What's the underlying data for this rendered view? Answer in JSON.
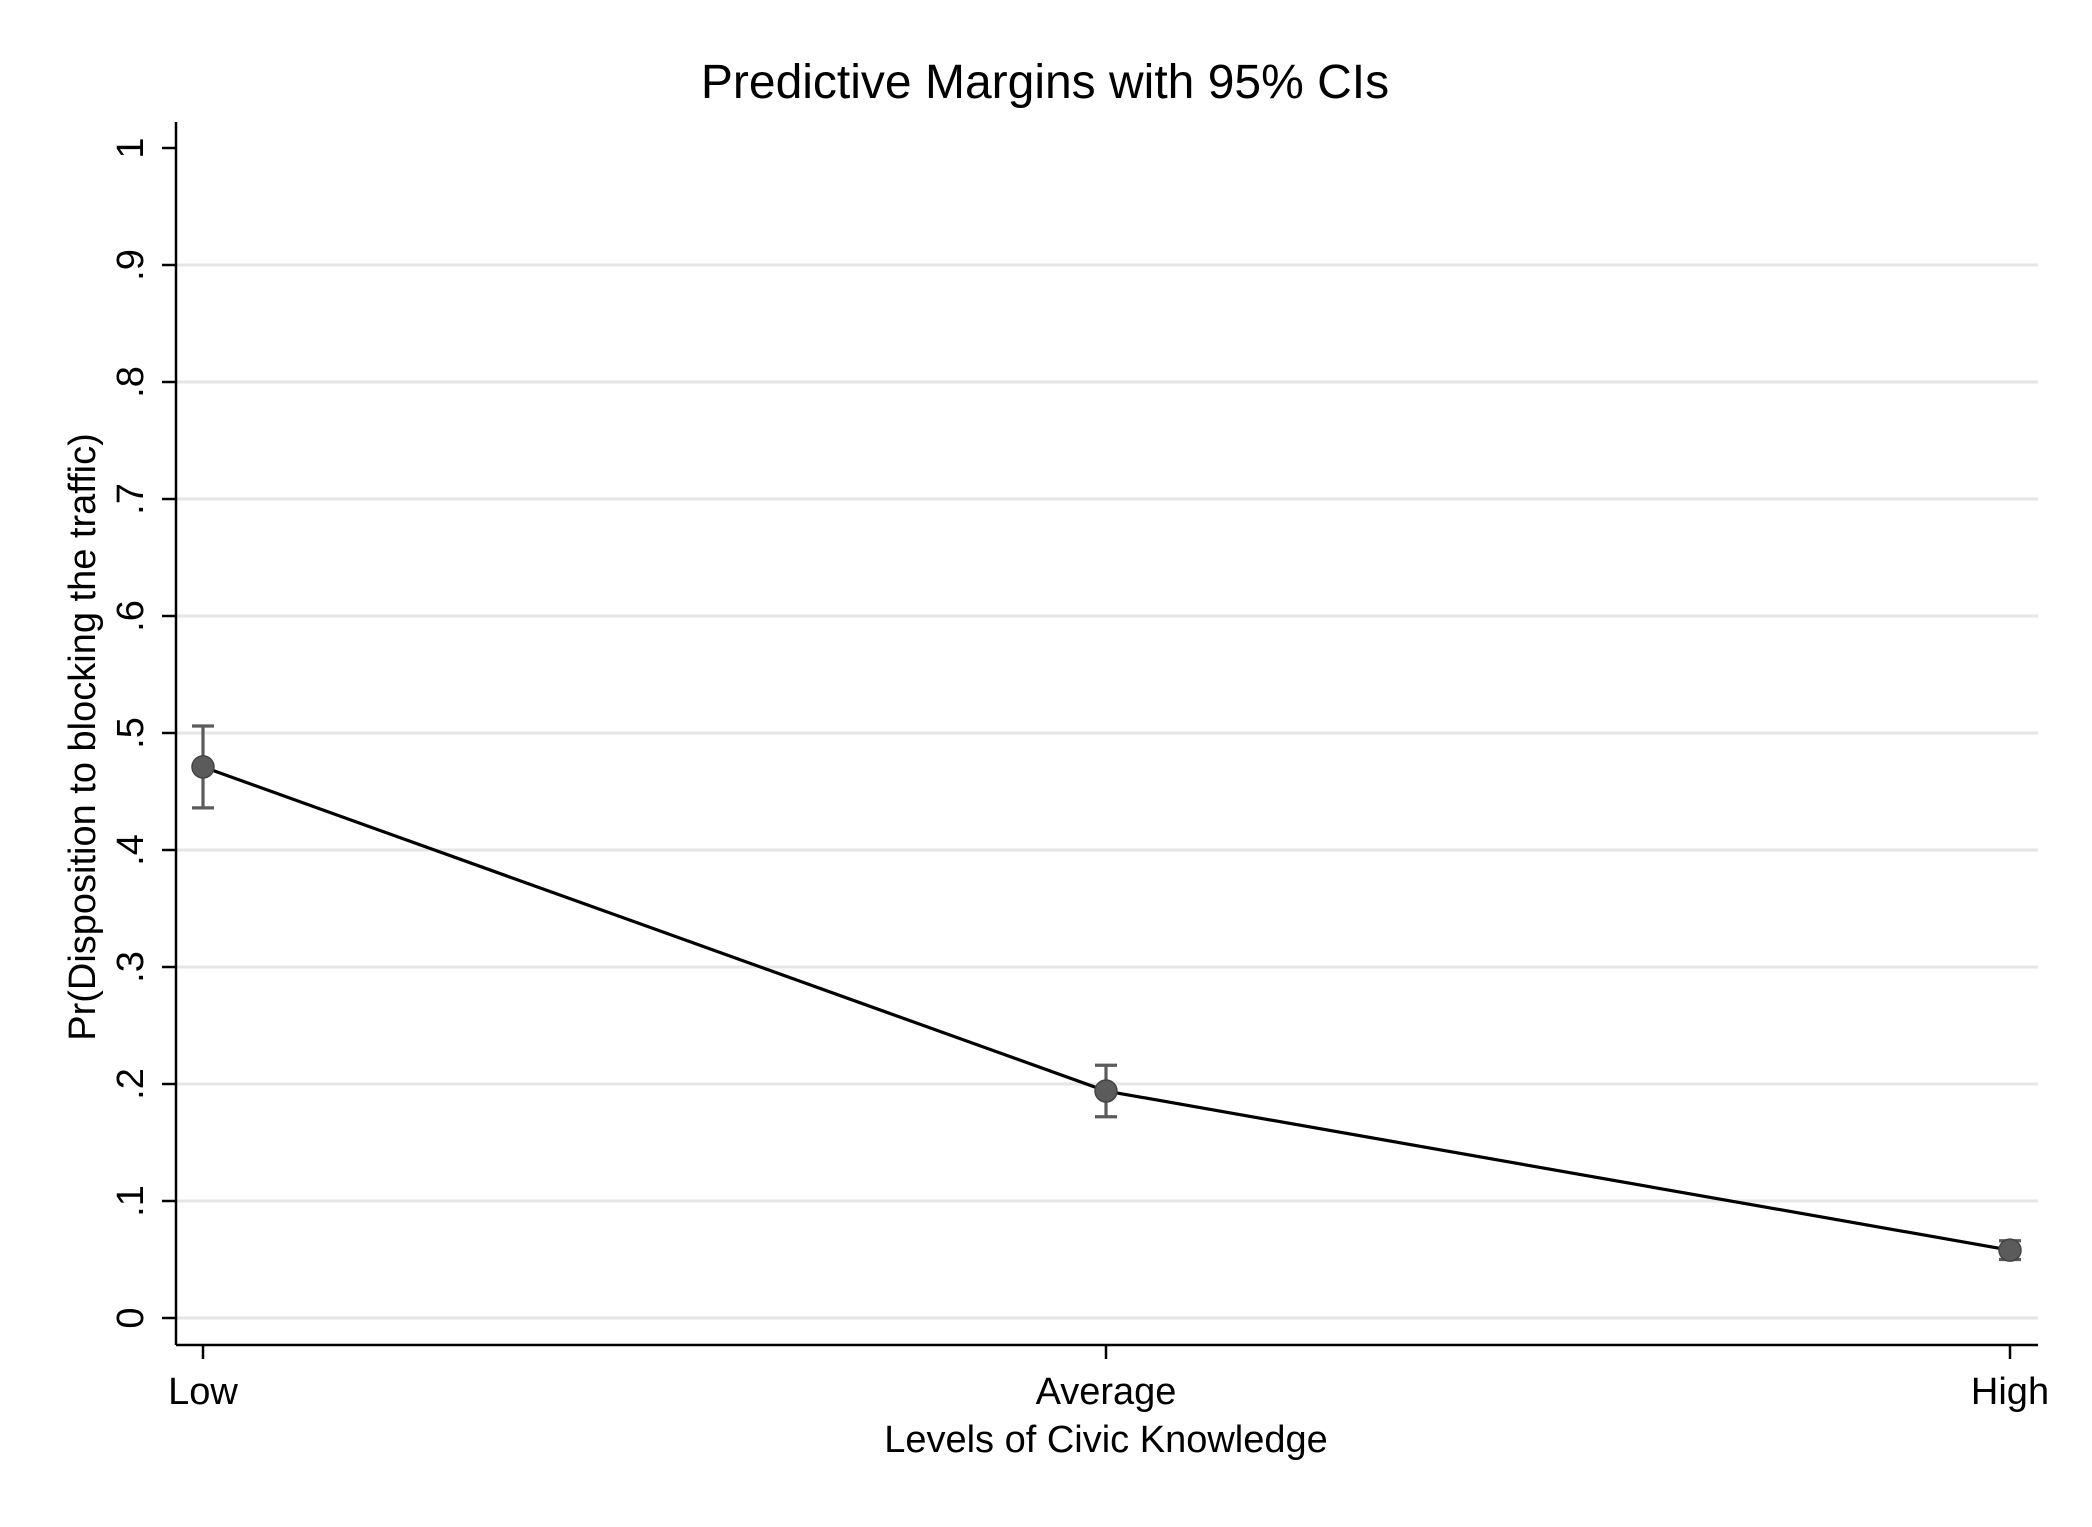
{
  "chart_data": {
    "type": "line",
    "title": "Predictive Margins with 95% CIs",
    "xlabel": "Levels of Civic Knowledge",
    "ylabel": "Pr(Disposition to blocking the traffic)",
    "categories": [
      "Low",
      "Average",
      "High"
    ],
    "series": [
      {
        "values": [
          0.471,
          0.194,
          0.058
        ],
        "ci_lower": [
          0.436,
          0.172,
          0.05
        ],
        "ci_upper": [
          0.506,
          0.216,
          0.066
        ]
      }
    ],
    "ylim": [
      0,
      1
    ],
    "yticks": [
      0,
      0.1,
      0.2,
      0.3,
      0.4,
      0.5,
      0.6,
      0.7,
      0.8,
      0.9,
      1
    ],
    "ytick_labels": [
      "0",
      ".1",
      ".2",
      ".3",
      ".4",
      ".5",
      ".6",
      ".7",
      ".8",
      ".9",
      "1"
    ],
    "grid": true,
    "legend": "none",
    "colors": {
      "line": "#000000",
      "marker": "#5b5b5b",
      "ci": "#5b5b5b",
      "grid": "#e6e6e6"
    }
  }
}
